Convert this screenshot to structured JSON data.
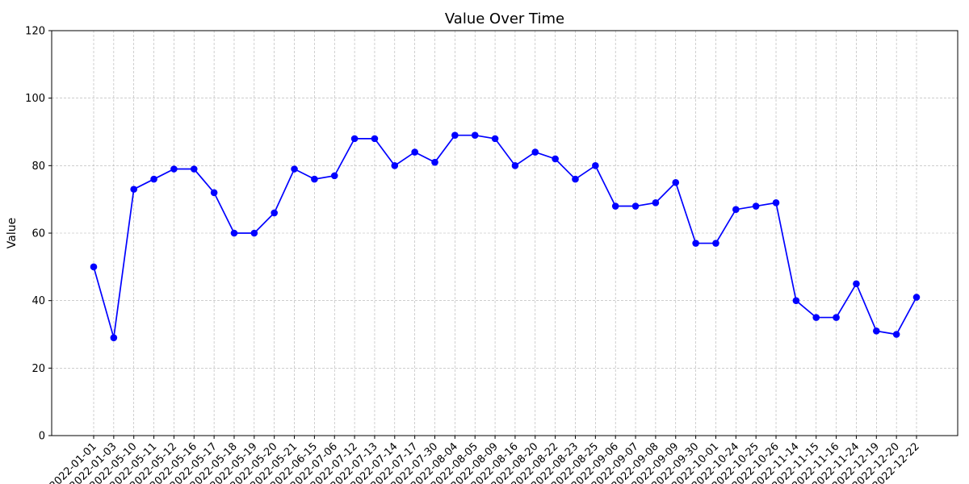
{
  "chart_data": {
    "type": "line",
    "title": "Value Over Time",
    "xlabel": "",
    "ylabel": "Value",
    "ylim": [
      0,
      120
    ],
    "yticks": [
      0,
      20,
      40,
      60,
      80,
      100,
      120
    ],
    "grid": true,
    "color": "#0000ff",
    "categories": [
      "2022-01-01",
      "2022-01-03",
      "2022-05-10",
      "2022-05-11",
      "2022-05-12",
      "2022-05-16",
      "2022-05-17",
      "2022-05-18",
      "2022-05-19",
      "2022-05-20",
      "2022-05-21",
      "2022-06-15",
      "2022-07-06",
      "2022-07-12",
      "2022-07-13",
      "2022-07-14",
      "2022-07-17",
      "2022-07-30",
      "2022-08-04",
      "2022-08-05",
      "2022-08-09",
      "2022-08-16",
      "2022-08-20",
      "2022-08-22",
      "2022-08-23",
      "2022-08-25",
      "2022-09-06",
      "2022-09-07",
      "2022-09-08",
      "2022-09-09",
      "2022-09-30",
      "2022-10-01",
      "2022-10-24",
      "2022-10-25",
      "2022-10-26",
      "2022-11-14",
      "2022-11-15",
      "2022-11-16",
      "2022-11-24",
      "2022-12-19",
      "2022-12-20",
      "2022-12-22"
    ],
    "series": [
      {
        "name": "Value",
        "values": [
          50,
          29,
          73,
          76,
          79,
          79,
          72,
          60,
          60,
          66,
          79,
          76,
          77,
          88,
          88,
          80,
          84,
          81,
          89,
          89,
          88,
          80,
          84,
          82,
          76,
          80,
          68,
          68,
          69,
          75,
          57,
          57,
          67,
          68,
          69,
          40,
          35,
          35,
          45,
          31,
          30,
          41
        ]
      }
    ]
  }
}
